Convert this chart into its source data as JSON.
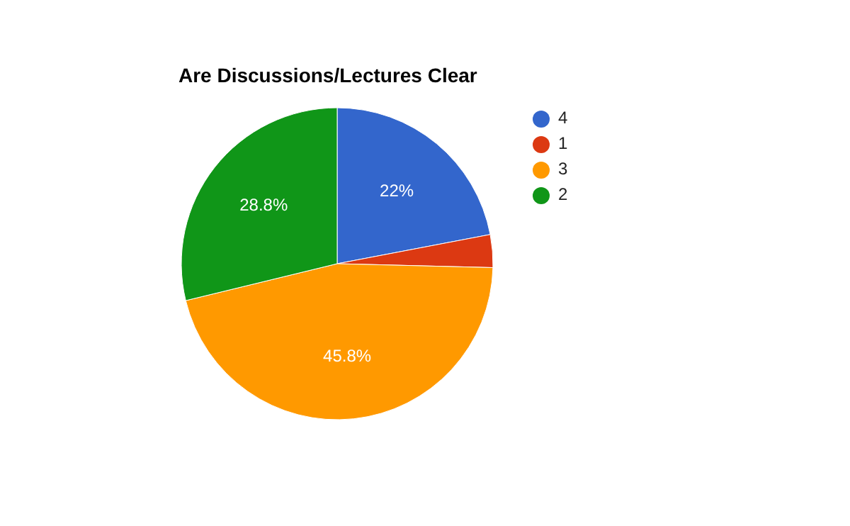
{
  "chart_data": {
    "type": "pie",
    "title": "Are Discussions/Lectures Clear",
    "categories": [
      "4",
      "1",
      "3",
      "2"
    ],
    "values": [
      22,
      3.4,
      45.8,
      28.8
    ],
    "colors": [
      "#3366cc",
      "#dc3912",
      "#ff9900",
      "#109618"
    ],
    "value_labels": [
      "22%",
      null,
      "45.8%",
      "28.8%"
    ],
    "legend": "top right"
  }
}
